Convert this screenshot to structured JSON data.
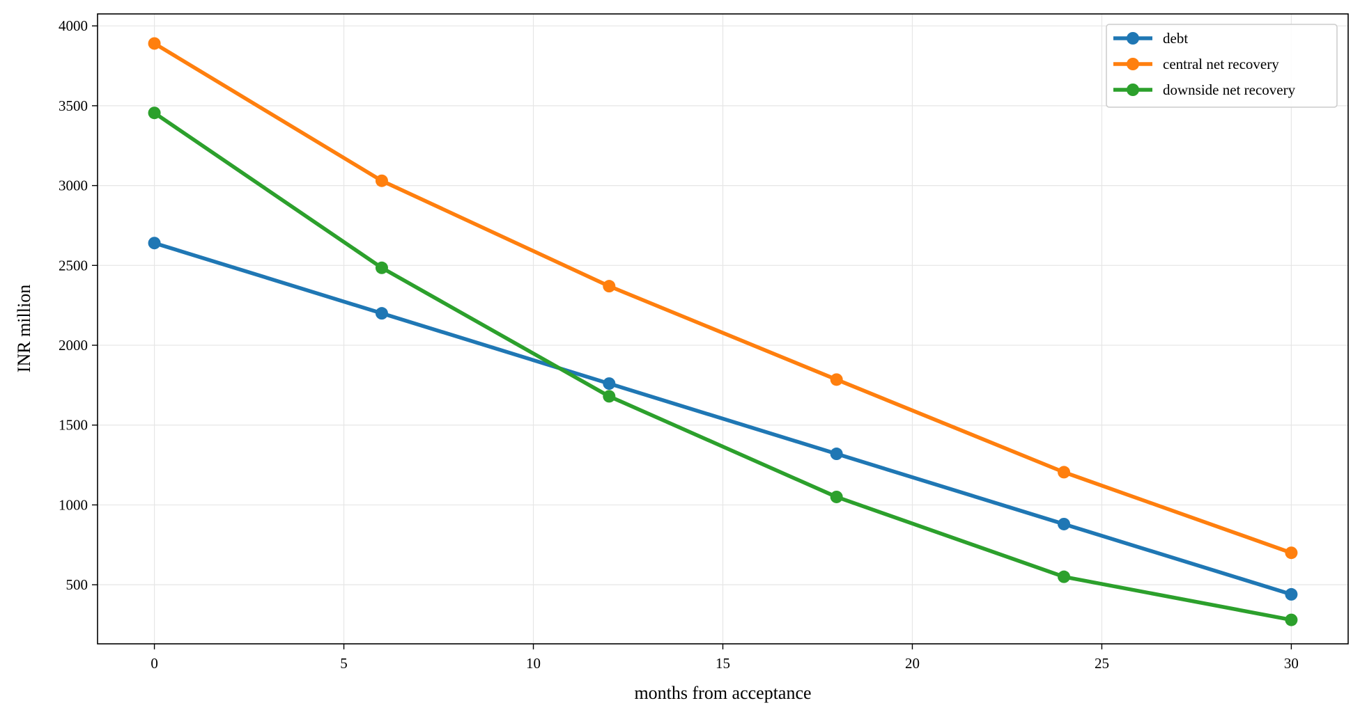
{
  "chart_data": {
    "type": "line",
    "title": "",
    "xlabel": "months from acceptance",
    "ylabel": "INR million",
    "x": [
      0,
      6,
      12,
      18,
      24,
      30
    ],
    "xlim": [
      -1.5,
      31.5
    ],
    "ylim": [
      130,
      4075
    ],
    "xticks": [
      0,
      5,
      10,
      15,
      20,
      25,
      30
    ],
    "yticks": [
      500,
      1000,
      1500,
      2000,
      2500,
      3000,
      3500,
      4000
    ],
    "grid": true,
    "legend_position": "top-right",
    "series": [
      {
        "name": "debt",
        "color": "#1f77b4",
        "values": [
          2640,
          2200,
          1760,
          1320,
          880,
          440
        ]
      },
      {
        "name": "central net recovery",
        "color": "#ff7f0e",
        "values": [
          3890,
          3030,
          2370,
          1785,
          1205,
          700
        ]
      },
      {
        "name": "downside net recovery",
        "color": "#2ca02c",
        "values": [
          3455,
          2485,
          1680,
          1050,
          550,
          280
        ]
      }
    ]
  }
}
